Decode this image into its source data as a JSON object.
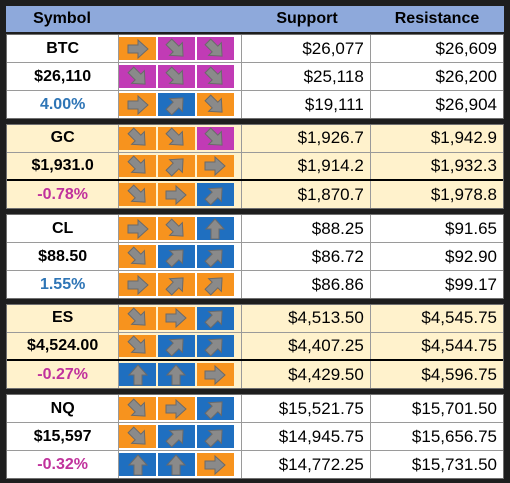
{
  "header": {
    "symbol": "Symbol",
    "support": "Support",
    "resistance": "Resistance"
  },
  "colors": {
    "orange": "#f7931e",
    "magenta": "#c13bb5",
    "blue": "#1f6fc0",
    "header": "#8ea9db",
    "tint": "#fff2cc",
    "positive": "#2e75b6",
    "negative": "#c0329c"
  },
  "groups": [
    {
      "tint": false,
      "rows": [
        {
          "label": "BTC",
          "style": "plain",
          "sig": [
            [
              "orange",
              "right"
            ],
            [
              "magenta",
              "down-right"
            ],
            [
              "magenta",
              "down-right"
            ]
          ],
          "support": "$26,077",
          "resistance": "$26,609"
        },
        {
          "label": "$26,110",
          "style": "plain",
          "sig": [
            [
              "magenta",
              "down-right"
            ],
            [
              "magenta",
              "down-right"
            ],
            [
              "magenta",
              "down-right"
            ]
          ],
          "support": "$25,118",
          "resistance": "$26,200"
        },
        {
          "label": "4.00%",
          "style": "pos",
          "sig": [
            [
              "orange",
              "right"
            ],
            [
              "blue",
              "up-right"
            ],
            [
              "orange",
              "down-right"
            ]
          ],
          "support": "$19,111",
          "resistance": "$26,904"
        }
      ]
    },
    {
      "tint": true,
      "rows": [
        {
          "label": "GC",
          "style": "plain",
          "sig": [
            [
              "orange",
              "down-right"
            ],
            [
              "orange",
              "down-right"
            ],
            [
              "magenta",
              "down-right"
            ]
          ],
          "support": "$1,926.7",
          "resistance": "$1,942.9"
        },
        {
          "label": "$1,931.0",
          "style": "plain",
          "sig": [
            [
              "orange",
              "down-right"
            ],
            [
              "orange",
              "up-right"
            ],
            [
              "orange",
              "right"
            ]
          ],
          "support": "$1,914.2",
          "resistance": "$1,932.3"
        },
        {
          "label": "-0.78%",
          "style": "neg",
          "sig": [
            [
              "orange",
              "down-right"
            ],
            [
              "orange",
              "right"
            ],
            [
              "blue",
              "up-right"
            ]
          ],
          "support": "$1,870.7",
          "resistance": "$1,978.8"
        }
      ]
    },
    {
      "tint": false,
      "rows": [
        {
          "label": "CL",
          "style": "plain",
          "sig": [
            [
              "orange",
              "right"
            ],
            [
              "orange",
              "down-right"
            ],
            [
              "blue",
              "up"
            ]
          ],
          "support": "$88.25",
          "resistance": "$91.65"
        },
        {
          "label": "$88.50",
          "style": "plain",
          "sig": [
            [
              "orange",
              "down-right"
            ],
            [
              "blue",
              "up-right"
            ],
            [
              "blue",
              "up-right"
            ]
          ],
          "support": "$86.72",
          "resistance": "$92.90"
        },
        {
          "label": "1.55%",
          "style": "pos",
          "sig": [
            [
              "orange",
              "right"
            ],
            [
              "orange",
              "up-right"
            ],
            [
              "orange",
              "up-right"
            ]
          ],
          "support": "$86.86",
          "resistance": "$99.17"
        }
      ]
    },
    {
      "tint": true,
      "rows": [
        {
          "label": "ES",
          "style": "plain",
          "sig": [
            [
              "orange",
              "down-right"
            ],
            [
              "orange",
              "right"
            ],
            [
              "blue",
              "up-right"
            ]
          ],
          "support": "$4,513.50",
          "resistance": "$4,545.75"
        },
        {
          "label": "$4,524.00",
          "style": "plain",
          "sig": [
            [
              "orange",
              "down-right"
            ],
            [
              "blue",
              "up-right"
            ],
            [
              "blue",
              "up-right"
            ]
          ],
          "support": "$4,407.25",
          "resistance": "$4,544.75"
        },
        {
          "label": "-0.27%",
          "style": "neg",
          "sig": [
            [
              "blue",
              "up"
            ],
            [
              "blue",
              "up"
            ],
            [
              "orange",
              "right"
            ]
          ],
          "support": "$4,429.50",
          "resistance": "$4,596.75"
        }
      ]
    },
    {
      "tint": false,
      "rows": [
        {
          "label": "NQ",
          "style": "plain",
          "sig": [
            [
              "orange",
              "down-right"
            ],
            [
              "orange",
              "right"
            ],
            [
              "blue",
              "up-right"
            ]
          ],
          "support": "$15,521.75",
          "resistance": "$15,701.50"
        },
        {
          "label": "$15,597",
          "style": "plain",
          "sig": [
            [
              "orange",
              "down-right"
            ],
            [
              "blue",
              "up-right"
            ],
            [
              "blue",
              "up-right"
            ]
          ],
          "support": "$14,945.75",
          "resistance": "$15,656.75"
        },
        {
          "label": "-0.32%",
          "style": "neg",
          "sig": [
            [
              "blue",
              "up"
            ],
            [
              "blue",
              "up"
            ],
            [
              "orange",
              "right"
            ]
          ],
          "support": "$14,772.25",
          "resistance": "$15,731.50"
        }
      ]
    }
  ]
}
